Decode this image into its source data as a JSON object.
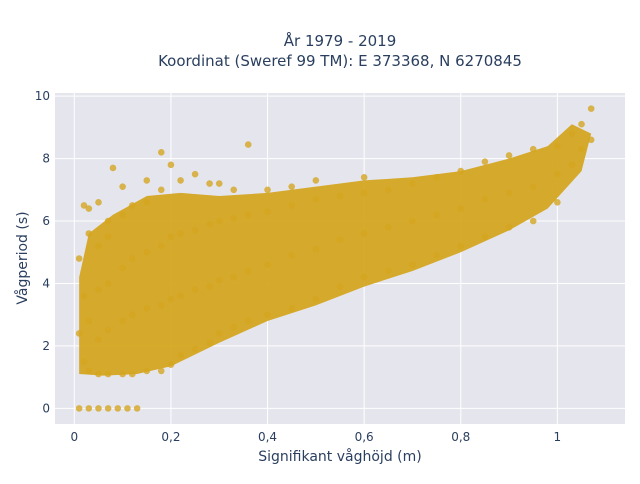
{
  "chart_data": {
    "type": "scatter",
    "title_line1": "År 1979 - 2019",
    "title_line2": "Koordinat (Sweref 99 TM): E 373368, N 6270845",
    "xlabel": "Signifikant våghöjd (m)",
    "ylabel": "Vågperiod (s)",
    "xlim": [
      -0.04,
      1.14
    ],
    "ylim": [
      -0.5,
      10.1
    ],
    "x_ticks": [
      {
        "value": 0,
        "label": "0"
      },
      {
        "value": 0.2,
        "label": "0,2"
      },
      {
        "value": 0.4,
        "label": "0,4"
      },
      {
        "value": 0.6,
        "label": "0,6"
      },
      {
        "value": 0.8,
        "label": "0,8"
      },
      {
        "value": 1,
        "label": "1"
      }
    ],
    "y_ticks": [
      {
        "value": 0,
        "label": "0"
      },
      {
        "value": 2,
        "label": "2"
      },
      {
        "value": 4,
        "label": "4"
      },
      {
        "value": 6,
        "label": "6"
      },
      {
        "value": 8,
        "label": "8"
      },
      {
        "value": 10,
        "label": "10"
      }
    ],
    "grid": true,
    "marker_color": "#d4a520",
    "plot_bg": "#e5e5ee",
    "grid_color": "#ffffff",
    "series": [
      {
        "values": [
          [
            0.01,
            0.0
          ],
          [
            0.03,
            0.0
          ],
          [
            0.05,
            0.0
          ],
          [
            0.07,
            0.0
          ],
          [
            0.09,
            0.0
          ],
          [
            0.11,
            0.0
          ],
          [
            0.13,
            0.0
          ],
          [
            0.01,
            2.4
          ],
          [
            0.01,
            4.8
          ],
          [
            0.02,
            1.5
          ],
          [
            0.02,
            3.6
          ],
          [
            0.02,
            6.5
          ],
          [
            0.03,
            1.2
          ],
          [
            0.03,
            2.8
          ],
          [
            0.03,
            5.6
          ],
          [
            0.03,
            6.4
          ],
          [
            0.05,
            1.1
          ],
          [
            0.05,
            2.2
          ],
          [
            0.05,
            3.8
          ],
          [
            0.05,
            5.2
          ],
          [
            0.05,
            6.6
          ],
          [
            0.07,
            1.1
          ],
          [
            0.07,
            2.5
          ],
          [
            0.07,
            4.0
          ],
          [
            0.07,
            5.5
          ],
          [
            0.07,
            6.0
          ],
          [
            0.08,
            7.7
          ],
          [
            0.1,
            1.1
          ],
          [
            0.1,
            2.8
          ],
          [
            0.1,
            4.5
          ],
          [
            0.1,
            6.2
          ],
          [
            0.1,
            7.1
          ],
          [
            0.12,
            1.1
          ],
          [
            0.12,
            3.0
          ],
          [
            0.12,
            4.8
          ],
          [
            0.12,
            6.5
          ],
          [
            0.15,
            1.2
          ],
          [
            0.15,
            3.2
          ],
          [
            0.15,
            5.0
          ],
          [
            0.15,
            6.6
          ],
          [
            0.15,
            7.3
          ],
          [
            0.18,
            1.2
          ],
          [
            0.18,
            3.3
          ],
          [
            0.18,
            5.2
          ],
          [
            0.18,
            7.0
          ],
          [
            0.18,
            8.2
          ],
          [
            0.2,
            1.4
          ],
          [
            0.2,
            3.5
          ],
          [
            0.2,
            5.5
          ],
          [
            0.2,
            7.8
          ],
          [
            0.22,
            1.7
          ],
          [
            0.22,
            3.6
          ],
          [
            0.22,
            5.6
          ],
          [
            0.22,
            7.3
          ],
          [
            0.25,
            1.9
          ],
          [
            0.25,
            3.8
          ],
          [
            0.25,
            5.7
          ],
          [
            0.25,
            7.5
          ],
          [
            0.28,
            2.1
          ],
          [
            0.28,
            3.9
          ],
          [
            0.28,
            5.9
          ],
          [
            0.28,
            7.2
          ],
          [
            0.3,
            2.4
          ],
          [
            0.3,
            4.1
          ],
          [
            0.3,
            6.0
          ],
          [
            0.3,
            7.2
          ],
          [
            0.33,
            2.6
          ],
          [
            0.33,
            4.2
          ],
          [
            0.33,
            6.1
          ],
          [
            0.33,
            7.0
          ],
          [
            0.36,
            8.45
          ],
          [
            0.36,
            2.8
          ],
          [
            0.36,
            4.4
          ],
          [
            0.36,
            6.2
          ],
          [
            0.4,
            3.0
          ],
          [
            0.4,
            4.6
          ],
          [
            0.4,
            6.3
          ],
          [
            0.4,
            7.0
          ],
          [
            0.45,
            3.2
          ],
          [
            0.45,
            4.9
          ],
          [
            0.45,
            6.5
          ],
          [
            0.45,
            7.1
          ],
          [
            0.5,
            3.5
          ],
          [
            0.5,
            5.1
          ],
          [
            0.5,
            6.7
          ],
          [
            0.5,
            7.3
          ],
          [
            0.55,
            3.9
          ],
          [
            0.55,
            5.4
          ],
          [
            0.55,
            6.8
          ],
          [
            0.6,
            4.2
          ],
          [
            0.6,
            5.6
          ],
          [
            0.6,
            6.9
          ],
          [
            0.6,
            7.4
          ],
          [
            0.65,
            4.4
          ],
          [
            0.65,
            5.8
          ],
          [
            0.65,
            7.0
          ],
          [
            0.7,
            4.6
          ],
          [
            0.7,
            6.0
          ],
          [
            0.7,
            7.2
          ],
          [
            0.75,
            4.9
          ],
          [
            0.75,
            6.2
          ],
          [
            0.75,
            7.4
          ],
          [
            0.8,
            5.2
          ],
          [
            0.8,
            6.4
          ],
          [
            0.8,
            7.6
          ],
          [
            0.85,
            5.5
          ],
          [
            0.85,
            6.7
          ],
          [
            0.85,
            7.9
          ],
          [
            0.9,
            5.8
          ],
          [
            0.9,
            6.9
          ],
          [
            0.9,
            8.1
          ],
          [
            0.95,
            6.0
          ],
          [
            0.95,
            7.1
          ],
          [
            0.95,
            8.3
          ],
          [
            1.0,
            6.6
          ],
          [
            1.0,
            7.5
          ],
          [
            1.0,
            8.4
          ],
          [
            1.03,
            7.8
          ],
          [
            1.03,
            8.8
          ],
          [
            1.05,
            8.3
          ],
          [
            1.05,
            9.1
          ],
          [
            1.07,
            8.6
          ],
          [
            1.07,
            9.6
          ]
        ]
      }
    ]
  }
}
